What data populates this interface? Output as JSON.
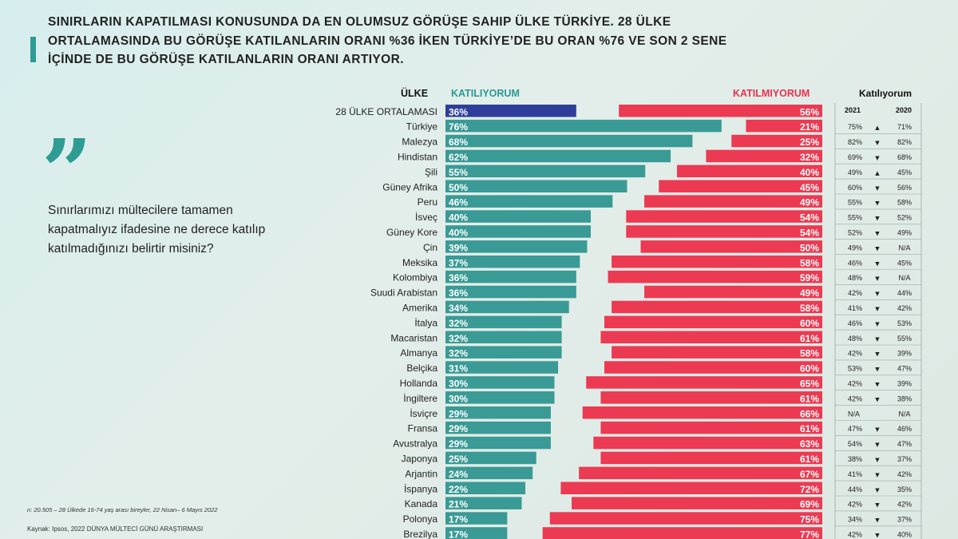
{
  "headline": {
    "line1": "SINIRLARIN KAPATILMASI KONUSUNDA DA EN OLUMSUZ GÖRÜŞE SAHIP ÜLKE TÜRKİYE. 28 ÜLKE",
    "line2": "ORTALAMASINDA BU GÖRÜŞE KATILANLARIN ORANI %36 İKEN TÜRKİYE’DE BU ORAN %76 VE SON 2 SENE",
    "line3": "İÇİNDE DE BU GÖRÜŞE KATILANLARIN ORANI ARTIYOR."
  },
  "quote": {
    "mark": "”",
    "text": "Sınırlarımızı mültecilere tamamen kapatmalıyız ifadesine ne derece katılıp katılmadığınızı belirtir misiniz?"
  },
  "footnote": "n: 20.505 – 28 Ülkede 16-74 yaş arası bireyler, 22 Nisan– 6 Mayıs 2022",
  "source": "Kaynak: Ipsos, 2022 DÜNYA MÜLTECİ GÜNÜ ARAŞTIRMASI",
  "headers": {
    "country": "ÜLKE",
    "agree": "KATILIYORUM",
    "disagree": "KATILMIYORUM",
    "trend": "Katılıyorum",
    "y2021": "2021",
    "y2020": "2020"
  },
  "colors": {
    "accent": "#2e9c94",
    "agree": "#3a9a95",
    "agree_avg": "#2e3e9a",
    "disagree": "#ec3a52",
    "agree_header": "#2a9a92",
    "disagree_header": "#e8334f"
  },
  "chart_data": {
    "type": "bar",
    "title": "Sınırlarımızı mültecilere tamamen kapatmalıyız",
    "unit": "%",
    "xlim": [
      0,
      100
    ],
    "series_names": [
      "KATILIYORUM",
      "KATILMIYORUM"
    ],
    "rows": [
      {
        "country": "28 ÜLKE ORTALAMASI",
        "agree": 36,
        "disagree": 56,
        "y2021": "",
        "arrow": "",
        "y2020": "",
        "average": true
      },
      {
        "country": "Türkiye",
        "agree": 76,
        "disagree": 21,
        "y2021": "75%",
        "arrow": "▲",
        "y2020": "71%"
      },
      {
        "country": "Malezya",
        "agree": 68,
        "disagree": 25,
        "y2021": "82%",
        "arrow": "▼",
        "y2020": "82%"
      },
      {
        "country": "Hindistan",
        "agree": 62,
        "disagree": 32,
        "y2021": "69%",
        "arrow": "▼",
        "y2020": "68%"
      },
      {
        "country": "Şili",
        "agree": 55,
        "disagree": 40,
        "y2021": "49%",
        "arrow": "▲",
        "y2020": "45%"
      },
      {
        "country": "Güney Afrika",
        "agree": 50,
        "disagree": 45,
        "y2021": "60%",
        "arrow": "▼",
        "y2020": "56%"
      },
      {
        "country": "Peru",
        "agree": 46,
        "disagree": 49,
        "y2021": "55%",
        "arrow": "▼",
        "y2020": "58%"
      },
      {
        "country": "İsveç",
        "agree": 40,
        "disagree": 54,
        "y2021": "55%",
        "arrow": "▼",
        "y2020": "52%"
      },
      {
        "country": "Güney Kore",
        "agree": 40,
        "disagree": 54,
        "y2021": "52%",
        "arrow": "▼",
        "y2020": "49%"
      },
      {
        "country": "Çin",
        "agree": 39,
        "disagree": 50,
        "y2021": "49%",
        "arrow": "▼",
        "y2020": "N/A"
      },
      {
        "country": "Meksika",
        "agree": 37,
        "disagree": 58,
        "y2021": "46%",
        "arrow": "▼",
        "y2020": "45%"
      },
      {
        "country": "Kolombiya",
        "agree": 36,
        "disagree": 59,
        "y2021": "48%",
        "arrow": "▼",
        "y2020": "N/A"
      },
      {
        "country": "Suudi Arabistan",
        "agree": 36,
        "disagree": 49,
        "y2021": "42%",
        "arrow": "▼",
        "y2020": "44%"
      },
      {
        "country": "Amerika",
        "agree": 34,
        "disagree": 58,
        "y2021": "41%",
        "arrow": "▼",
        "y2020": "42%"
      },
      {
        "country": "İtalya",
        "agree": 32,
        "disagree": 60,
        "y2021": "46%",
        "arrow": "▼",
        "y2020": "53%"
      },
      {
        "country": "Macaristan",
        "agree": 32,
        "disagree": 61,
        "y2021": "48%",
        "arrow": "▼",
        "y2020": "55%"
      },
      {
        "country": "Almanya",
        "agree": 32,
        "disagree": 58,
        "y2021": "42%",
        "arrow": "▼",
        "y2020": "39%"
      },
      {
        "country": "Belçika",
        "agree": 31,
        "disagree": 60,
        "y2021": "53%",
        "arrow": "▼",
        "y2020": "47%"
      },
      {
        "country": "Hollanda",
        "agree": 30,
        "disagree": 65,
        "y2021": "42%",
        "arrow": "▼",
        "y2020": "39%"
      },
      {
        "country": "İngiltere",
        "agree": 30,
        "disagree": 61,
        "y2021": "42%",
        "arrow": "▼",
        "y2020": "38%"
      },
      {
        "country": "İsviçre",
        "agree": 29,
        "disagree": 66,
        "y2021": "N/A",
        "arrow": "",
        "y2020": "N/A"
      },
      {
        "country": "Fransa",
        "agree": 29,
        "disagree": 61,
        "y2021": "47%",
        "arrow": "▼",
        "y2020": "46%"
      },
      {
        "country": "Avustralya",
        "agree": 29,
        "disagree": 63,
        "y2021": "54%",
        "arrow": "▼",
        "y2020": "47%"
      },
      {
        "country": "Japonya",
        "agree": 25,
        "disagree": 61,
        "y2021": "38%",
        "arrow": "▼",
        "y2020": "37%"
      },
      {
        "country": "Arjantin",
        "agree": 24,
        "disagree": 67,
        "y2021": "41%",
        "arrow": "▼",
        "y2020": "42%"
      },
      {
        "country": "İspanya",
        "agree": 22,
        "disagree": 72,
        "y2021": "44%",
        "arrow": "▼",
        "y2020": "35%"
      },
      {
        "country": "Kanada",
        "agree": 21,
        "disagree": 69,
        "y2021": "42%",
        "arrow": "▼",
        "y2020": "42%"
      },
      {
        "country": "Polonya",
        "agree": 17,
        "disagree": 75,
        "y2021": "34%",
        "arrow": "▼",
        "y2020": "37%"
      },
      {
        "country": "Brezilya",
        "agree": 17,
        "disagree": 77,
        "y2021": "42%",
        "arrow": "▼",
        "y2020": "40%"
      }
    ]
  }
}
